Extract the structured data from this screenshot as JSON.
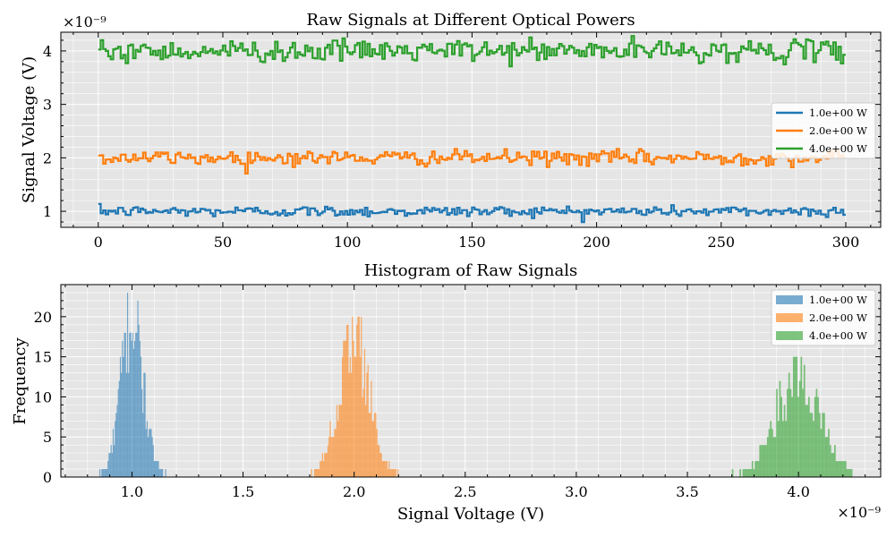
{
  "chart_data": [
    {
      "type": "line",
      "title": "Raw Signals at Different Optical Powers",
      "xlabel": "",
      "ylabel": "Signal Voltage (V)",
      "y_scale_note": "×10⁻⁹",
      "xlim": [
        -15,
        314
      ],
      "ylim": [
        0.7,
        4.35
      ],
      "xticks": [
        0,
        50,
        100,
        150,
        200,
        250,
        300
      ],
      "yticks": [
        1,
        2,
        3,
        4
      ],
      "grid": true,
      "legend_position": "right",
      "series": [
        {
          "name": "1.0e+00 W",
          "color": "#1f77b4",
          "x_range": [
            0,
            299
          ],
          "mean": 1.0,
          "std": 0.05
        },
        {
          "name": "2.0e+00 W",
          "color": "#ff7f0e",
          "x_range": [
            0,
            299
          ],
          "mean": 2.0,
          "std": 0.07
        },
        {
          "name": "4.0e+00 W",
          "color": "#2ca02c",
          "x_range": [
            0,
            299
          ],
          "mean": 4.0,
          "std": 0.1
        }
      ]
    },
    {
      "type": "bar",
      "title": "Histogram of Raw Signals",
      "xlabel": "Signal Voltage (V)",
      "ylabel": "Frequency",
      "x_scale_note": "×10⁻⁹",
      "xlim": [
        0.68,
        4.37
      ],
      "ylim": [
        0,
        24
      ],
      "xticks": [
        1.0,
        1.5,
        2.0,
        2.5,
        3.0,
        3.5,
        4.0
      ],
      "yticks": [
        0,
        5,
        10,
        15,
        20
      ],
      "grid": true,
      "legend_position": "top-right",
      "series": [
        {
          "name": "1.0e+00 W",
          "color": "#1f77b4",
          "mean": 1.0,
          "std": 0.05,
          "range": [
            0.83,
            1.2
          ],
          "peak": 23
        },
        {
          "name": "2.0e+00 W",
          "color": "#ff7f0e",
          "mean": 2.0,
          "std": 0.07,
          "range": [
            1.8,
            2.2
          ],
          "peak": 20
        },
        {
          "name": "4.0e+00 W",
          "color": "#2ca02c",
          "mean": 4.0,
          "std": 0.1,
          "range": [
            3.7,
            4.25
          ],
          "peak": 15
        }
      ]
    }
  ]
}
